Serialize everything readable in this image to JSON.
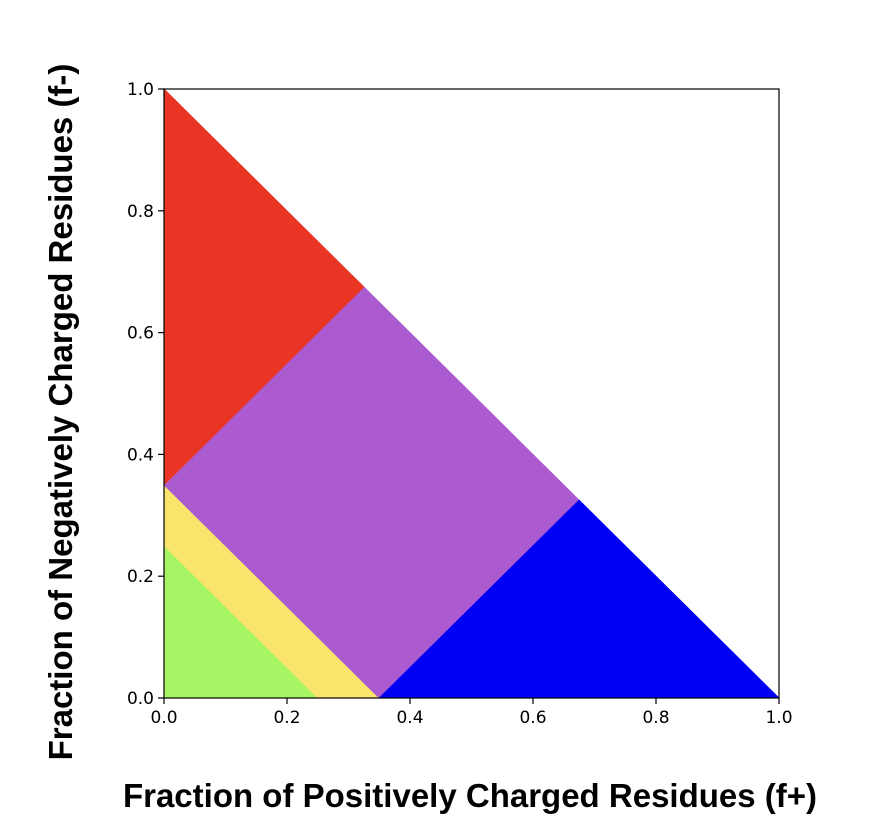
{
  "chart_data": {
    "type": "area",
    "title": "",
    "xlabel": "Fraction of Positively Charged Residues (f+)",
    "ylabel": "Fraction of Negatively Charged Residues (f-)",
    "xlim": [
      0.0,
      1.0
    ],
    "ylim": [
      0.0,
      1.0
    ],
    "grid": false,
    "legend": "none",
    "xticks": [
      "0.0",
      "0.2",
      "0.4",
      "0.6",
      "0.8",
      "1.0"
    ],
    "yticks": [
      "0.0",
      "0.2",
      "0.4",
      "0.6",
      "0.8",
      "1.0"
    ],
    "regions": [
      {
        "color": "#A6F564",
        "polygon": [
          [
            0.0,
            0.0
          ],
          [
            0.25,
            0.0
          ],
          [
            0.0,
            0.25
          ]
        ]
      },
      {
        "color": "#F9E46C",
        "polygon": [
          [
            0.25,
            0.0
          ],
          [
            0.35,
            0.0
          ],
          [
            0.0,
            0.35
          ],
          [
            0.0,
            0.25
          ]
        ]
      },
      {
        "color": "#AB5BCF",
        "polygon": [
          [
            0.35,
            0.0
          ],
          [
            0.675,
            0.325
          ],
          [
            0.325,
            0.675
          ],
          [
            0.0,
            0.35
          ]
        ]
      },
      {
        "color": "#E83524",
        "polygon": [
          [
            0.0,
            0.35
          ],
          [
            0.325,
            0.675
          ],
          [
            0.0,
            1.0
          ]
        ]
      },
      {
        "color": "#0000F5",
        "polygon": [
          [
            0.35,
            0.0
          ],
          [
            1.0,
            0.0
          ],
          [
            0.675,
            0.325
          ]
        ]
      }
    ]
  }
}
